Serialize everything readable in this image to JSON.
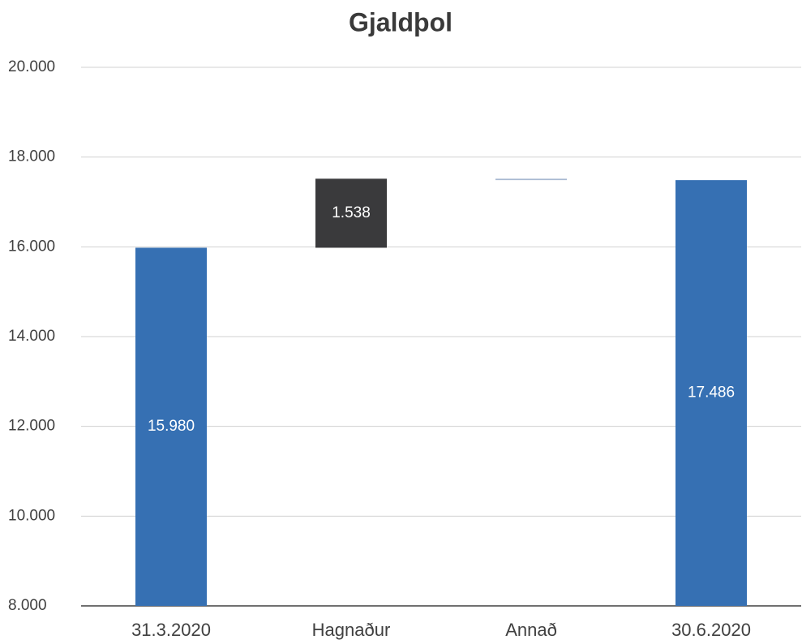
{
  "chart_data": {
    "type": "waterfall",
    "title": "Gjaldþol",
    "categories": [
      "31.3.2020",
      "Hagnaður",
      "Annað",
      "30.6.2020"
    ],
    "values": [
      15980,
      1538,
      -32,
      17486
    ],
    "value_labels": [
      "15.980",
      "1.538",
      null,
      "17.486"
    ],
    "measures": [
      "absolute",
      "relative",
      "relative",
      "total"
    ],
    "total_color": "#3670b3",
    "increase_color": "#3a3a3c",
    "decrease_color": "#a9b9d2",
    "ylim": [
      8000,
      20000
    ],
    "yticks": [
      {
        "value": 8000,
        "label": "8.000"
      },
      {
        "value": 10000,
        "label": "10.000"
      },
      {
        "value": 12000,
        "label": "12.000"
      },
      {
        "value": 14000,
        "label": "14.000"
      },
      {
        "value": 16000,
        "label": "16.000"
      },
      {
        "value": 18000,
        "label": "18.000"
      },
      {
        "value": 20000,
        "label": "20.000"
      }
    ],
    "grid": true
  }
}
